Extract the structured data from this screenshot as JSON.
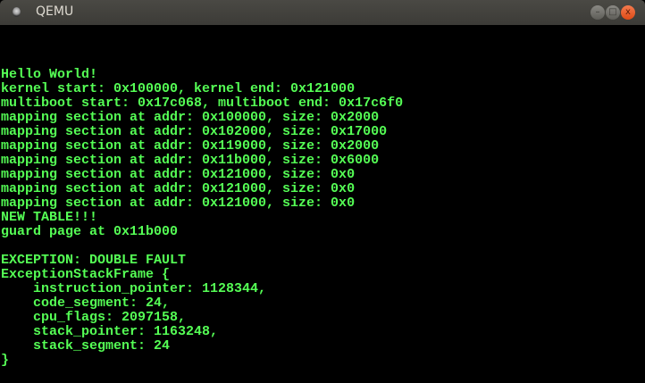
{
  "window": {
    "title": "QEMU",
    "buttons": {
      "minimize": "–",
      "maximize": "□",
      "close": "x"
    }
  },
  "console": {
    "text_color": "#55ff55",
    "lines": [
      "",
      "",
      "",
      "Hello World!",
      "kernel start: 0x100000, kernel end: 0x121000",
      "multiboot start: 0x17c068, multiboot end: 0x17c6f0",
      "mapping section at addr: 0x100000, size: 0x2000",
      "mapping section at addr: 0x102000, size: 0x17000",
      "mapping section at addr: 0x119000, size: 0x2000",
      "mapping section at addr: 0x11b000, size: 0x6000",
      "mapping section at addr: 0x121000, size: 0x0",
      "mapping section at addr: 0x121000, size: 0x0",
      "mapping section at addr: 0x121000, size: 0x0",
      "NEW TABLE!!!",
      "guard page at 0x11b000",
      "",
      "EXCEPTION: DOUBLE FAULT",
      "ExceptionStackFrame {",
      "    instruction_pointer: 1128344,",
      "    code_segment: 24,",
      "    cpu_flags: 2097158,",
      "    stack_pointer: 1163248,",
      "    stack_segment: 24",
      "}"
    ]
  }
}
